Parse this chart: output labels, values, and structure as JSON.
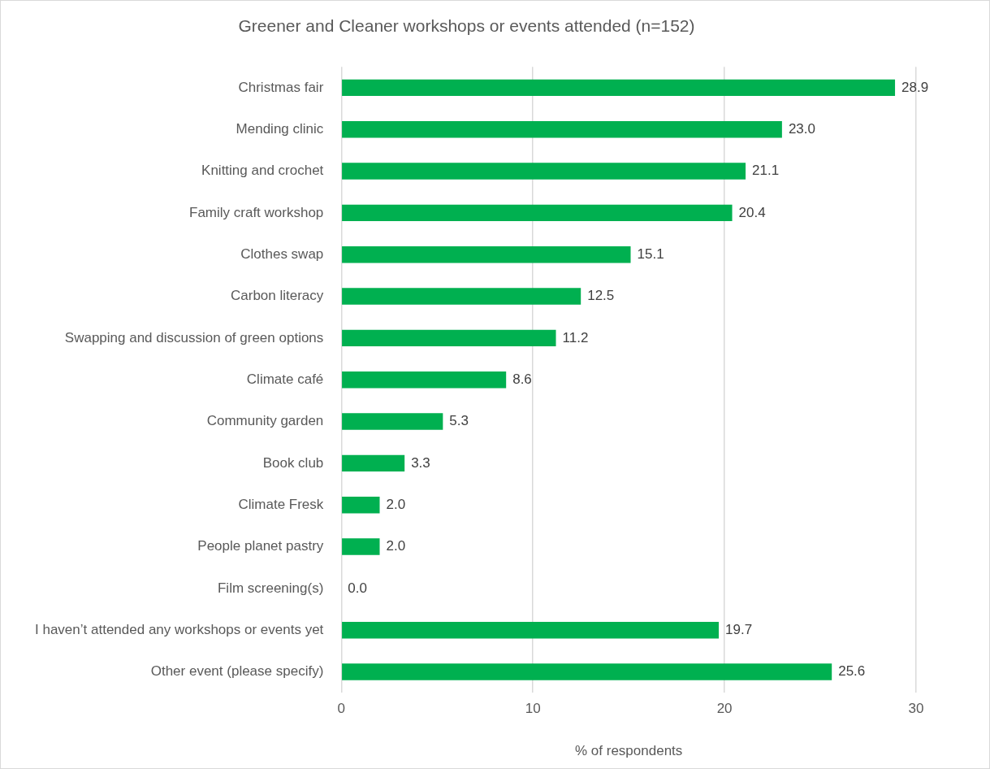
{
  "chart_data": {
    "type": "bar",
    "orientation": "horizontal",
    "title": "Greener and Cleaner workshops or events attended (n=152)",
    "xlabel": "% of respondents",
    "categories": [
      "Christmas fair",
      "Mending clinic",
      "Knitting and crochet",
      "Family craft workshop",
      "Clothes swap",
      "Carbon literacy",
      "Swapping and discussion of green options",
      "Climate café",
      "Community garden",
      "Book club",
      "Climate Fresk",
      "People planet pastry",
      "Film screening(s)",
      "I haven’t attended any workshops or events yet",
      "Other event (please specify)"
    ],
    "values": [
      28.9,
      23.0,
      21.1,
      20.4,
      15.1,
      12.5,
      11.2,
      8.6,
      5.3,
      3.3,
      2.0,
      2.0,
      0.0,
      19.7,
      25.6
    ],
    "value_labels": [
      "28.9",
      "23.0",
      "21.1",
      "20.4",
      "15.1",
      "12.5",
      "11.2",
      "8.6",
      "5.3",
      "3.3",
      "2.0",
      "2.0",
      "0.0",
      "19.7",
      "25.6"
    ],
    "color": "#00b050",
    "xlim": [
      0,
      30
    ],
    "xticks": [
      0,
      10,
      20,
      30
    ],
    "grid": "x",
    "legend": false
  }
}
